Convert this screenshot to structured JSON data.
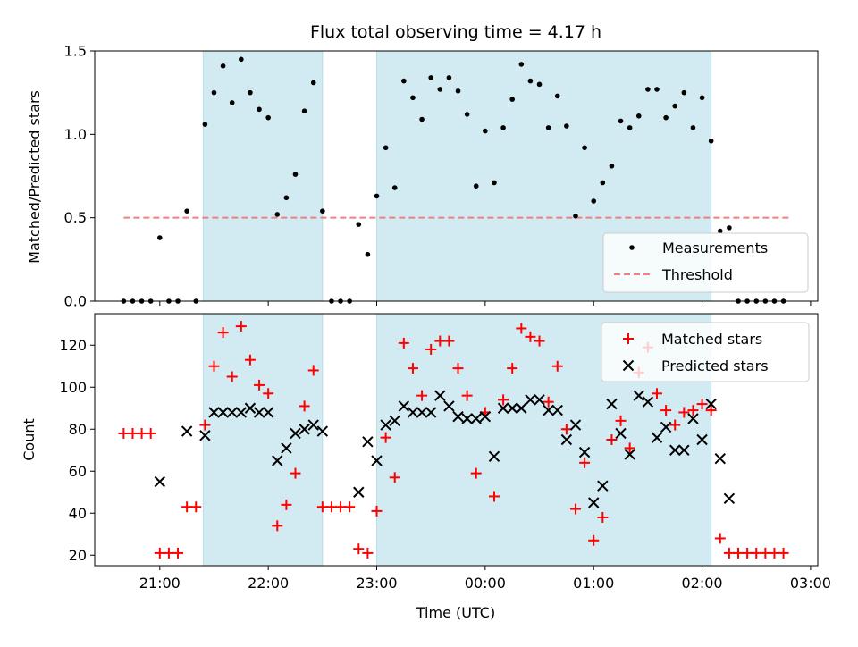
{
  "chart_data": [
    {
      "type": "scatter",
      "title": "Flux total observing time = 4.17 h",
      "xlabel": "",
      "ylabel": "Matched/Predicted stars",
      "ylim": [
        0,
        1.5
      ],
      "yticks": [
        0.0,
        0.5,
        1.0,
        1.5
      ],
      "ytick_labels": [
        "0.0",
        "0.5",
        "1.0",
        "1.5"
      ],
      "shaded_intervals": [
        [
          "21:24",
          "22:30"
        ],
        [
          "23:00",
          "02:05"
        ]
      ],
      "shade_color": "#add8e6",
      "threshold": {
        "name": "Threshold",
        "value": 0.5,
        "x_start": "20:40",
        "x_end": "02:48",
        "color": "#f08080"
      },
      "series": [
        {
          "name": "Measurements",
          "color": "#000000",
          "marker": "dot",
          "x": [
            "20:40",
            "20:45",
            "20:50",
            "20:55",
            "21:00",
            "21:05",
            "21:10",
            "21:15",
            "21:20",
            "21:25",
            "21:30",
            "21:35",
            "21:40",
            "21:45",
            "21:50",
            "21:55",
            "22:00",
            "22:05",
            "22:10",
            "22:15",
            "22:20",
            "22:25",
            "22:30",
            "22:35",
            "22:40",
            "22:45",
            "22:50",
            "22:55",
            "23:00",
            "23:05",
            "23:10",
            "23:15",
            "23:20",
            "23:25",
            "23:30",
            "23:35",
            "23:40",
            "23:45",
            "23:50",
            "23:55",
            "00:00",
            "00:05",
            "00:10",
            "00:15",
            "00:20",
            "00:25",
            "00:30",
            "00:35",
            "00:40",
            "00:45",
            "00:50",
            "00:55",
            "01:00",
            "01:05",
            "01:10",
            "01:15",
            "01:20",
            "01:25",
            "01:30",
            "01:35",
            "01:40",
            "01:45",
            "01:50",
            "01:55",
            "02:00",
            "02:05",
            "02:10",
            "02:15",
            "02:20",
            "02:25",
            "02:30",
            "02:35",
            "02:40",
            "02:45"
          ],
          "y": [
            0,
            0,
            0,
            0,
            0.38,
            0,
            0,
            0.54,
            0,
            1.06,
            1.25,
            1.41,
            1.19,
            1.45,
            1.25,
            1.15,
            1.1,
            0.52,
            0.62,
            0.76,
            1.14,
            1.31,
            0.54,
            0,
            0,
            0,
            0.46,
            0.28,
            0.63,
            0.92,
            0.68,
            1.32,
            1.22,
            1.09,
            1.34,
            1.27,
            1.34,
            1.26,
            1.12,
            0.69,
            1.02,
            0.71,
            1.04,
            1.21,
            1.42,
            1.32,
            1.3,
            1.04,
            1.23,
            1.05,
            0.51,
            0.92,
            0.6,
            0.71,
            0.81,
            1.08,
            1.04,
            1.11,
            1.27,
            1.27,
            1.1,
            1.17,
            1.25,
            1.04,
            1.22,
            0.96,
            0.42,
            0.44,
            0,
            0,
            0,
            0,
            0,
            0
          ]
        }
      ],
      "legend": {
        "placement": "lower-right",
        "entries": [
          "Measurements",
          "Threshold"
        ]
      }
    },
    {
      "type": "scatter",
      "title": "",
      "xlabel": "Time (UTC)",
      "ylabel": "Count",
      "ylim": [
        15,
        135
      ],
      "xlim": [
        "20:24",
        "03:04"
      ],
      "yticks": [
        20,
        40,
        60,
        80,
        100,
        120
      ],
      "ytick_labels": [
        "20",
        "40",
        "60",
        "80",
        "100",
        "120"
      ],
      "xticks": [
        "21:00",
        "22:00",
        "23:00",
        "00:00",
        "01:00",
        "02:00",
        "03:00"
      ],
      "shaded_intervals": [
        [
          "21:24",
          "22:30"
        ],
        [
          "23:00",
          "02:05"
        ]
      ],
      "shade_color": "#add8e6",
      "series": [
        {
          "name": "Matched stars",
          "color": "#ff0000",
          "marker": "plus",
          "x": [
            "20:40",
            "20:45",
            "20:50",
            "20:55",
            "21:00",
            "21:05",
            "21:10",
            "21:15",
            "21:20",
            "21:25",
            "21:30",
            "21:35",
            "21:40",
            "21:45",
            "21:50",
            "21:55",
            "22:00",
            "22:05",
            "22:10",
            "22:15",
            "22:20",
            "22:25",
            "22:30",
            "22:35",
            "22:40",
            "22:45",
            "22:50",
            "22:55",
            "23:00",
            "23:05",
            "23:10",
            "23:15",
            "23:20",
            "23:25",
            "23:30",
            "23:35",
            "23:40",
            "23:45",
            "23:50",
            "23:55",
            "00:00",
            "00:05",
            "00:10",
            "00:15",
            "00:20",
            "00:25",
            "00:30",
            "00:35",
            "00:40",
            "00:45",
            "00:50",
            "00:55",
            "01:00",
            "01:05",
            "01:10",
            "01:15",
            "01:20",
            "01:25",
            "01:30",
            "01:35",
            "01:40",
            "01:45",
            "01:50",
            "01:55",
            "02:00",
            "02:05",
            "02:10",
            "02:15",
            "02:20",
            "02:25",
            "02:30",
            "02:35",
            "02:40",
            "02:45"
          ],
          "y": [
            78,
            78,
            78,
            78,
            21,
            21,
            21,
            43,
            43,
            82,
            110,
            126,
            105,
            129,
            113,
            101,
            97,
            34,
            44,
            59,
            91,
            108,
            43,
            43,
            43,
            43,
            23,
            21,
            41,
            76,
            57,
            121,
            109,
            96,
            118,
            122,
            122,
            109,
            96,
            59,
            88,
            48,
            94,
            109,
            128,
            124,
            122,
            93,
            110,
            80,
            42,
            64,
            27,
            38,
            75,
            84,
            71,
            107,
            119,
            97,
            89,
            82,
            88,
            89,
            92,
            89,
            28,
            21,
            21,
            21,
            21,
            21,
            21,
            21
          ]
        },
        {
          "name": "Predicted stars",
          "color": "#000000",
          "marker": "x",
          "x": [
            "21:00",
            "21:15",
            "21:25",
            "21:30",
            "21:35",
            "21:40",
            "21:45",
            "21:50",
            "21:55",
            "22:00",
            "22:05",
            "22:10",
            "22:15",
            "22:20",
            "22:25",
            "22:30",
            "22:50",
            "22:55",
            "23:00",
            "23:05",
            "23:10",
            "23:15",
            "23:20",
            "23:25",
            "23:30",
            "23:35",
            "23:40",
            "23:45",
            "23:50",
            "23:55",
            "00:00",
            "00:05",
            "00:10",
            "00:15",
            "00:20",
            "00:25",
            "00:30",
            "00:35",
            "00:40",
            "00:45",
            "00:50",
            "00:55",
            "01:00",
            "01:05",
            "01:10",
            "01:15",
            "01:20",
            "01:25",
            "01:30",
            "01:35",
            "01:40",
            "01:45",
            "01:50",
            "01:55",
            "02:00",
            "02:05",
            "02:10",
            "02:15"
          ],
          "y": [
            55,
            79,
            77,
            88,
            88,
            88,
            88,
            90,
            88,
            88,
            65,
            71,
            78,
            80,
            82,
            79,
            50,
            74,
            65,
            82,
            84,
            91,
            88,
            88,
            88,
            96,
            91,
            86,
            85,
            85,
            86,
            67,
            90,
            90,
            90,
            94,
            94,
            89,
            89,
            75,
            82,
            69,
            45,
            53,
            92,
            78,
            68,
            96,
            93,
            76,
            81,
            70,
            70,
            85,
            75,
            92,
            66,
            47
          ]
        }
      ],
      "legend": {
        "placement": "top-right",
        "entries": [
          "Matched stars",
          "Predicted stars"
        ]
      }
    }
  ]
}
